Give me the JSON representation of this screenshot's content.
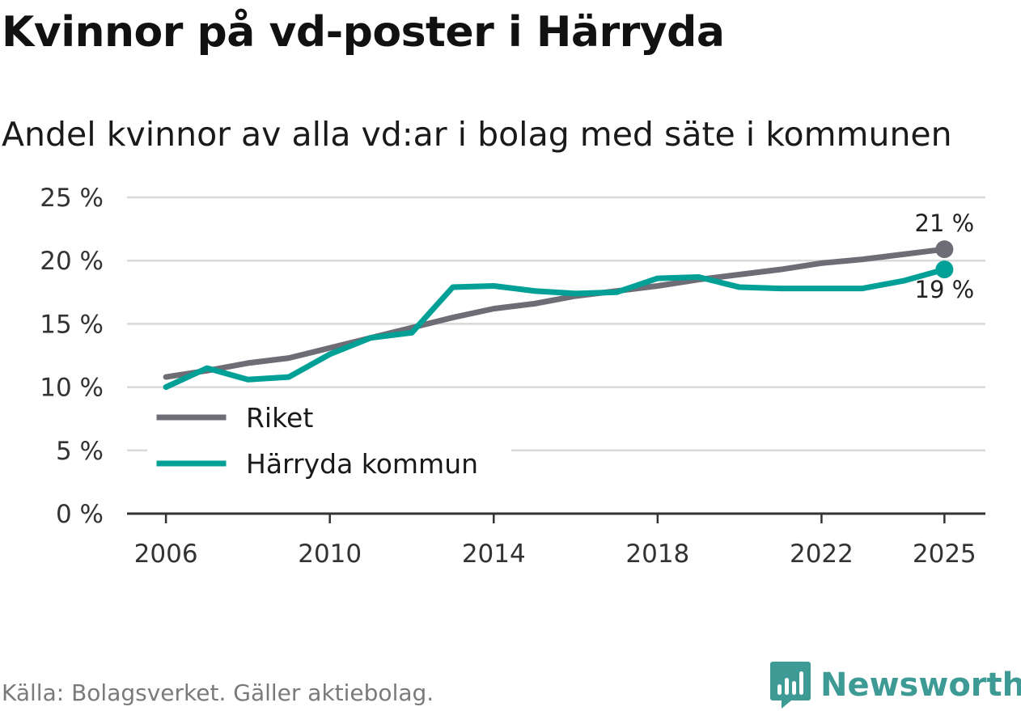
{
  "title": "Kvinnor på vd-poster i Härryda",
  "subtitle": "Andel kvinnor av alla vd:ar i bolag med säte i kommunen",
  "source": "Källa: Bolagsverket. Gäller aktiebolag.",
  "brand": {
    "name": "Newsworthy",
    "icon": "newsworthy-logo-icon",
    "color": "#3d9a94"
  },
  "chart_data": {
    "type": "line",
    "title": "Kvinnor på vd-poster i Härryda",
    "subtitle": "Andel kvinnor av alla vd:ar i bolag med säte i kommunen",
    "xlabel": "",
    "ylabel": "",
    "x": [
      2006,
      2007,
      2008,
      2009,
      2010,
      2011,
      2012,
      2013,
      2014,
      2015,
      2016,
      2017,
      2018,
      2019,
      2020,
      2021,
      2022,
      2023,
      2024,
      2025
    ],
    "xticks": [
      2006,
      2010,
      2014,
      2018,
      2022,
      2025
    ],
    "xtick_labels": [
      "2006",
      "2010",
      "2014",
      "2018",
      "2022",
      "2025"
    ],
    "ylim": [
      0,
      25
    ],
    "yticks": [
      0,
      5,
      10,
      15,
      20,
      25
    ],
    "ytick_labels": [
      "0 %",
      "5 %",
      "10 %",
      "15 %",
      "20 %",
      "25 %"
    ],
    "grid": true,
    "legend_position": "bottom-left",
    "series": [
      {
        "name": "Riket",
        "color": "#6e6d75",
        "values": [
          10.8,
          11.3,
          11.9,
          12.3,
          13.1,
          13.9,
          14.7,
          15.5,
          16.2,
          16.6,
          17.2,
          17.6,
          18.0,
          18.5,
          18.9,
          19.3,
          19.8,
          20.1,
          20.5,
          20.9
        ],
        "end_label": "21 %"
      },
      {
        "name": "Härryda kommun",
        "color": "#00a096",
        "values": [
          10.0,
          11.5,
          10.6,
          10.8,
          12.6,
          13.9,
          14.3,
          17.9,
          18.0,
          17.6,
          17.4,
          17.5,
          18.6,
          18.7,
          17.9,
          17.8,
          17.8,
          17.8,
          18.4,
          19.3
        ],
        "end_label": "19 %"
      }
    ]
  }
}
